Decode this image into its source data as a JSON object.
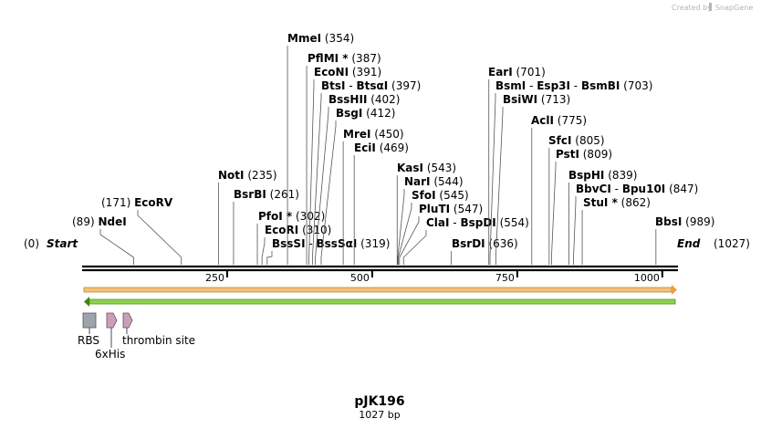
{
  "watermark": "Created by",
  "brand": "SnapGene",
  "title": "pJK196",
  "length_label": "1027 bp",
  "map_length": 1027,
  "ends": {
    "start_label": "Start",
    "start_pos": "(0)",
    "end_label": "End",
    "end_pos": "(1027)"
  },
  "ruler_ticks": [
    "250",
    "500",
    "750",
    "1000"
  ],
  "ruler_tick_values": [
    250,
    500,
    750,
    1000
  ],
  "sites": [
    {
      "names": [
        "NdeI"
      ],
      "pos": "(89)",
      "cut": 89
    },
    {
      "names": [
        "EcoRV"
      ],
      "pos": "(171)",
      "cut": 171
    },
    {
      "names": [
        "NotI"
      ],
      "pos": "(235)",
      "cut": 235
    },
    {
      "names": [
        "BsrBI"
      ],
      "pos": "(261)",
      "cut": 261
    },
    {
      "names": [
        "PfoI *"
      ],
      "pos": "(302)",
      "cut": 302
    },
    {
      "names": [
        "EcoRI"
      ],
      "pos": "(310)",
      "cut": 310
    },
    {
      "names": [
        "BssSI",
        "BssSαI"
      ],
      "pos": "(319)",
      "cut": 319
    },
    {
      "names": [
        "MmeI"
      ],
      "pos": "(354)",
      "cut": 354
    },
    {
      "names": [
        "PflMI *"
      ],
      "pos": "(387)",
      "cut": 387
    },
    {
      "names": [
        "EcoNI"
      ],
      "pos": "(391)",
      "cut": 391
    },
    {
      "names": [
        "BtsI",
        "BtsαI"
      ],
      "pos": "(397)",
      "cut": 397
    },
    {
      "names": [
        "BssHII"
      ],
      "pos": "(402)",
      "cut": 402
    },
    {
      "names": [
        "BsgI"
      ],
      "pos": "(412)",
      "cut": 412
    },
    {
      "names": [
        "MreI"
      ],
      "pos": "(450)",
      "cut": 450
    },
    {
      "names": [
        "EciI"
      ],
      "pos": "(469)",
      "cut": 469
    },
    {
      "names": [
        "KasI"
      ],
      "pos": "(543)",
      "cut": 543
    },
    {
      "names": [
        "NarI"
      ],
      "pos": "(544)",
      "cut": 544
    },
    {
      "names": [
        "SfoI"
      ],
      "pos": "(545)",
      "cut": 545
    },
    {
      "names": [
        "PluTI"
      ],
      "pos": "(547)",
      "cut": 547
    },
    {
      "names": [
        "ClaI",
        "BspDI"
      ],
      "pos": "(554)",
      "cut": 554
    },
    {
      "names": [
        "BsrDI"
      ],
      "pos": "(636)",
      "cut": 636
    },
    {
      "names": [
        "EarI"
      ],
      "pos": "(701)",
      "cut": 701
    },
    {
      "names": [
        "BsmI",
        "Esp3I",
        "BsmBI"
      ],
      "pos": "(703)",
      "cut": 703
    },
    {
      "names": [
        "BsiWI"
      ],
      "pos": "(713)",
      "cut": 713
    },
    {
      "names": [
        "AclI"
      ],
      "pos": "(775)",
      "cut": 775
    },
    {
      "names": [
        "SfcI"
      ],
      "pos": "(805)",
      "cut": 805
    },
    {
      "names": [
        "PstI"
      ],
      "pos": "(809)",
      "cut": 809
    },
    {
      "names": [
        "BspHI"
      ],
      "pos": "(839)",
      "cut": 839
    },
    {
      "names": [
        "BbvCI",
        "Bpu10I"
      ],
      "pos": "(847)",
      "cut": 847
    },
    {
      "names": [
        "StuI *"
      ],
      "pos": "(862)",
      "cut": 862
    },
    {
      "names": [
        "BbsI"
      ],
      "pos": "(989)",
      "cut": 989
    }
  ],
  "features": [
    {
      "name": "RBS",
      "shape": "box",
      "color": "#9ea3ad"
    },
    {
      "name": "6xHis",
      "shape": "arrow",
      "color": "#c9a0b9"
    },
    {
      "name": "thrombin site",
      "shape": "arrow",
      "color": "#c9a0b9"
    }
  ],
  "orf_forward_color": "#f0c27a",
  "orf_reverse_color": "#8fd14f"
}
